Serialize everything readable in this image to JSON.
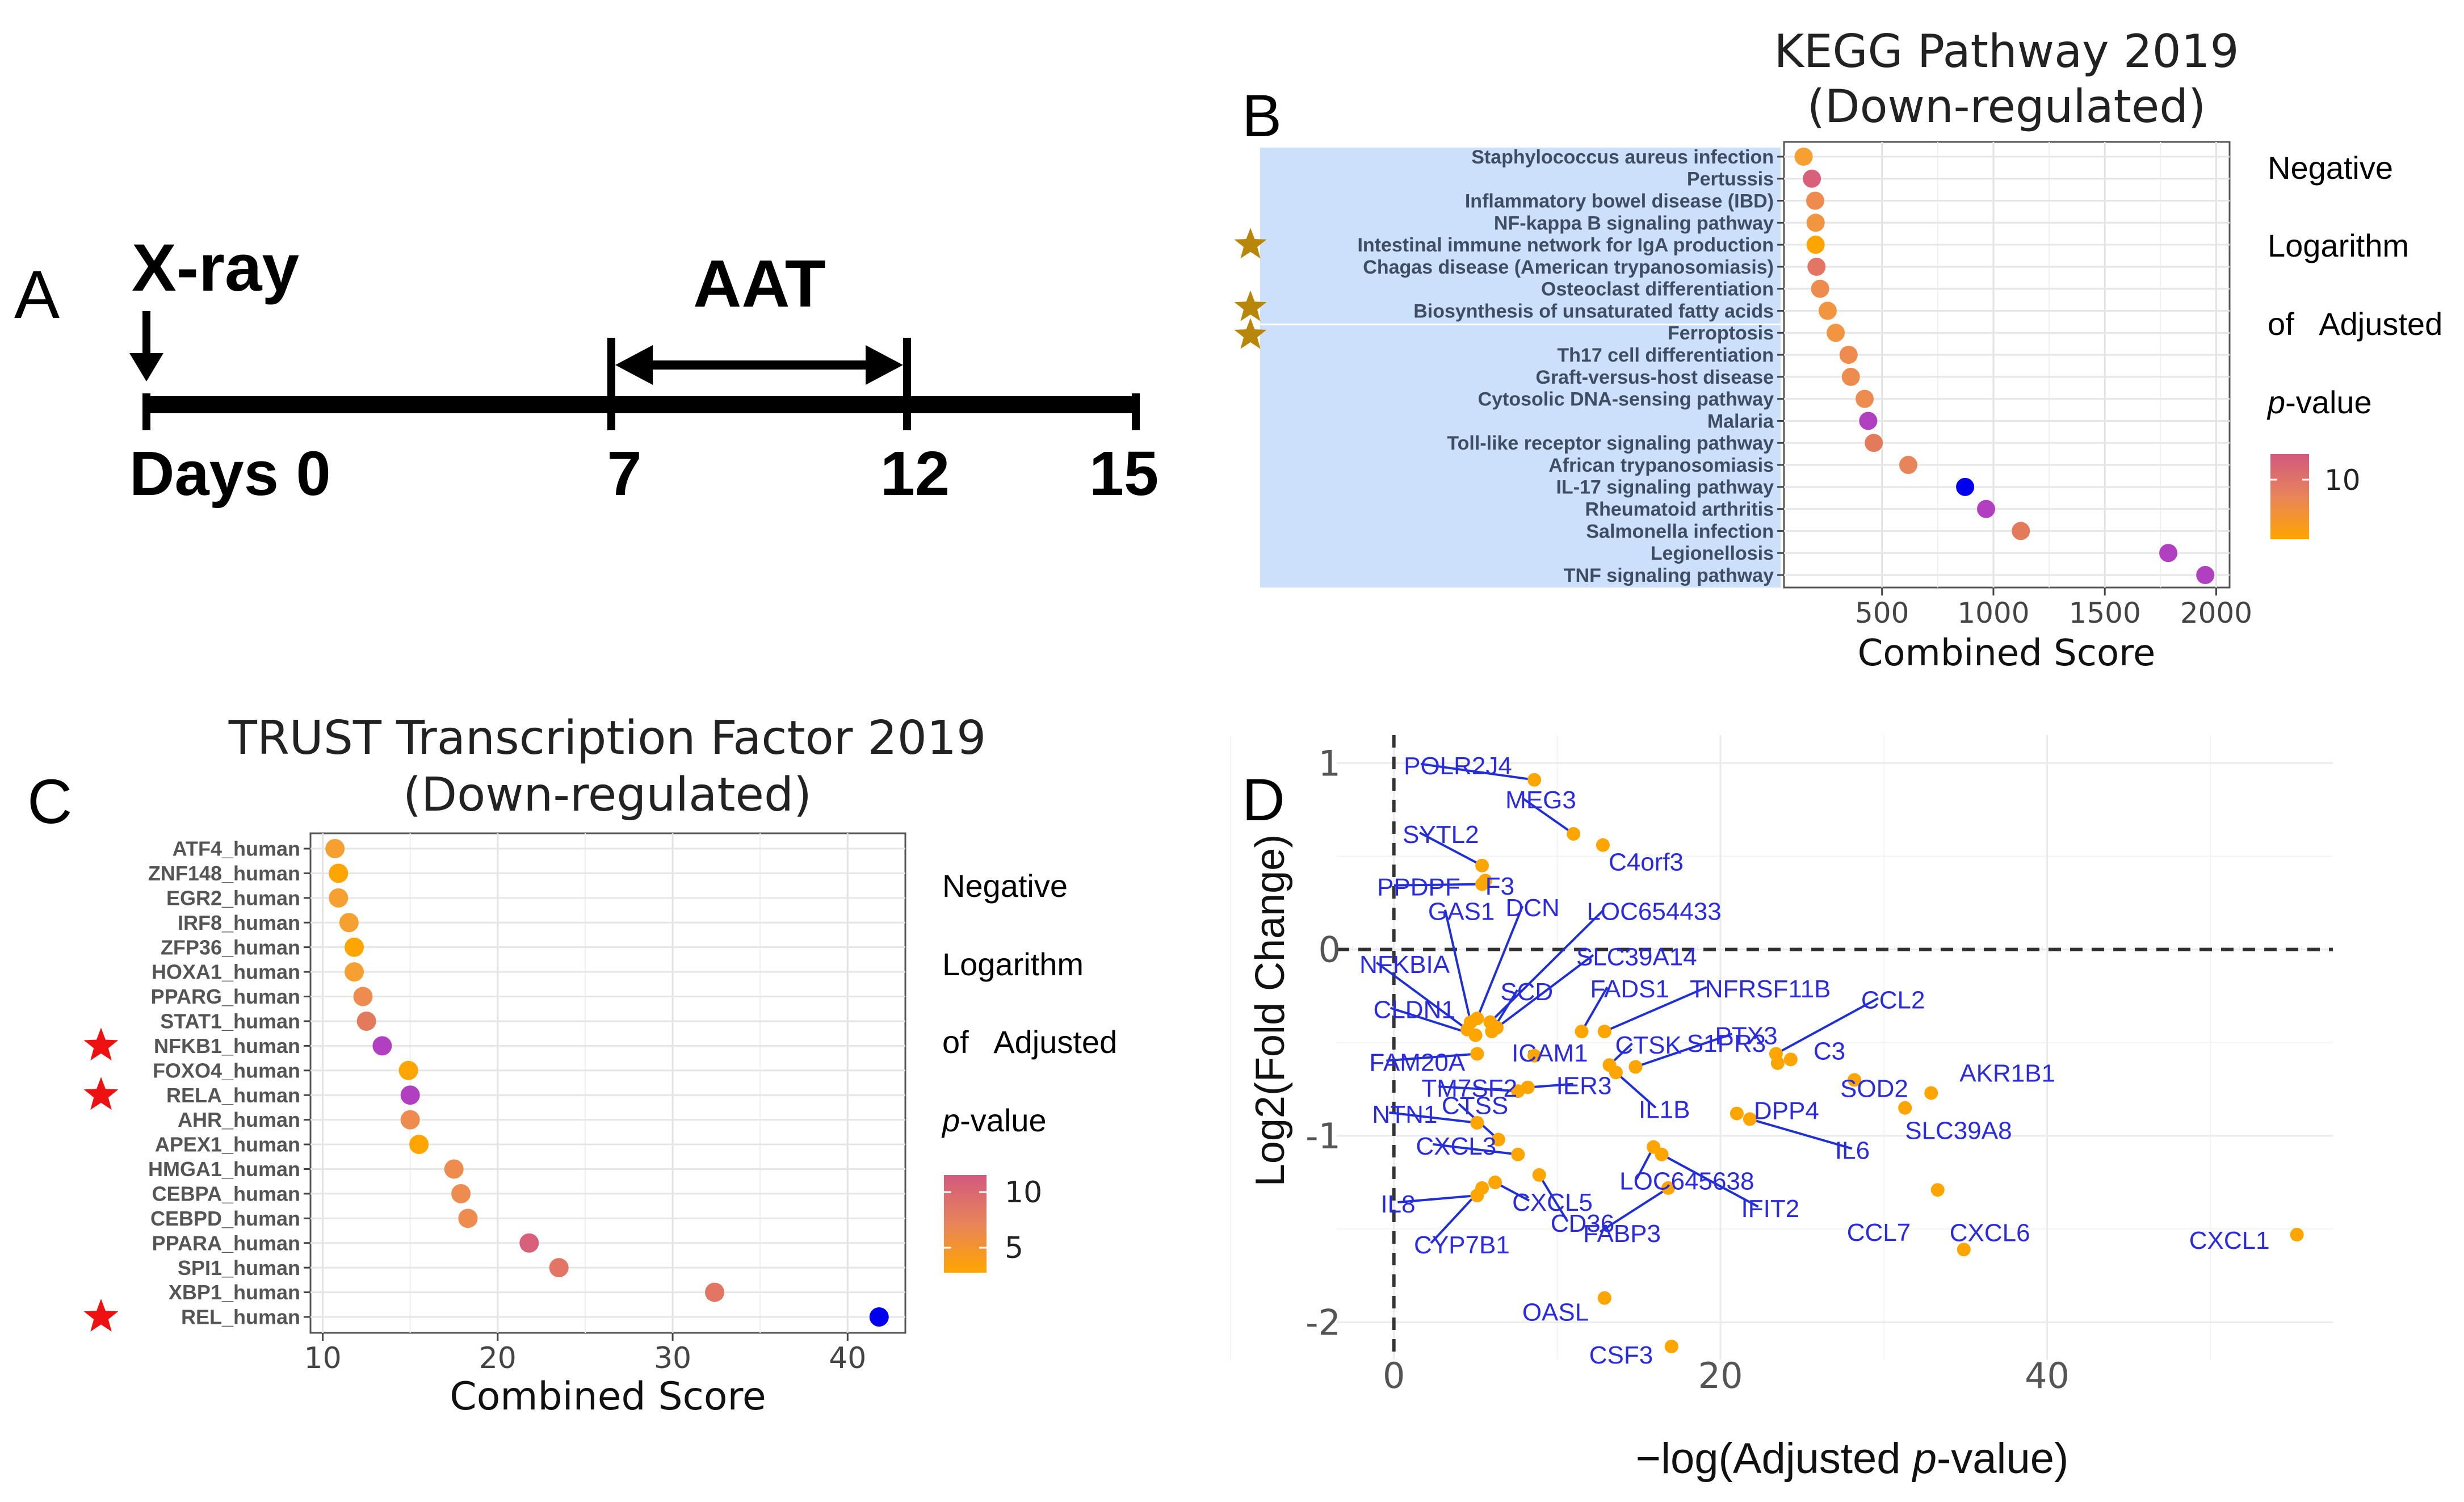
{
  "panel_labels": {
    "a": "A",
    "b": "B",
    "c": "C",
    "d": "D"
  },
  "panel_a": {
    "xray_label": "X-ray",
    "aat_label": "AAT",
    "day_labels": [
      "Days 0",
      "7",
      "12",
      "15"
    ],
    "days": [
      0,
      7,
      12,
      15
    ]
  },
  "colors": {
    "grad_high": "#d2597e",
    "grad_mid": "#e8845a",
    "grad_low": "#ffa500",
    "purple": "#b040c0",
    "blue": "#0000ee",
    "highlight_bg": "#cce0fb",
    "star_gold": "#b8860b",
    "star_red": "#ee1111",
    "gene_label": "#2a2ae0",
    "dot_orange": "#ffa500"
  },
  "legend_b": {
    "lines": [
      "Negative",
      "Logarithm",
      "of   Adjusted"
    ],
    "italic": "p",
    "suffix": "-value",
    "ticks": [
      "10"
    ]
  },
  "legend_c": {
    "lines": [
      "Negative",
      "Logarithm",
      "of   Adjusted"
    ],
    "italic": "p",
    "suffix": "-value",
    "ticks": [
      "10",
      "5"
    ]
  },
  "chart_data": [
    {
      "type": "scatter",
      "panel": "B",
      "title": "KEGG Pathway 2019",
      "subtitle": "(Down-regulated)",
      "xlabel": "Combined Score",
      "ylabel": "",
      "xlim": [
        60,
        2060
      ],
      "xticks": [
        500,
        1000,
        1500,
        2000
      ],
      "xtick_labels": [
        "500",
        "1000",
        "1500",
        "2000"
      ],
      "grid": true,
      "color_legend_title": "Negative Logarithm of Adjusted p-value",
      "starred": [
        "Intestinal immune network for IgA production",
        "Biosynthesis of unsaturated fatty acids",
        "Ferroptosis"
      ],
      "categories": [
        "Staphylococcus aureus infection",
        "Pertussis",
        "Inflammatory bowel disease (IBD)",
        "NF-kappa B signaling pathway",
        "Intestinal immune network for IgA production",
        "Chagas disease (American trypanosomiasis)",
        "Osteoclast differentiation",
        "Biosynthesis of unsaturated fatty acids",
        "Ferroptosis",
        "Th17 cell differentiation",
        "Graft-versus-host disease",
        "Cytosolic DNA-sensing pathway",
        "Malaria",
        "Toll-like receptor signaling pathway",
        "African trypanosomiasis",
        "IL-17 signaling pathway",
        "Rheumatoid arthritis",
        "Salmonella infection",
        "Legionellosis",
        "TNF signaling pathway"
      ],
      "values": [
        148,
        185,
        200,
        202,
        202,
        206,
        222,
        256,
        292,
        350,
        360,
        422,
        438,
        463,
        618,
        873,
        967,
        1123,
        1785,
        1951
      ],
      "colors": [
        "#f5a030",
        "#d8607a",
        "#ee8c50",
        "#f29540",
        "#ffa500",
        "#e37565",
        "#ee8c50",
        "#f29540",
        "#f29540",
        "#ee8c50",
        "#ee8c50",
        "#ee8c50",
        "#b040c0",
        "#e47a5c",
        "#e8845a",
        "#0000ee",
        "#b040c0",
        "#e47a5c",
        "#b040c0",
        "#b040c0"
      ]
    },
    {
      "type": "scatter",
      "panel": "C",
      "title": "TRUST Transcription Factor 2019",
      "subtitle": "(Down-regulated)",
      "xlabel": "Combined Score",
      "ylabel": "",
      "xlim": [
        9.3,
        43.3
      ],
      "xticks": [
        10,
        20,
        30,
        40
      ],
      "xtick_labels": [
        "10",
        "20",
        "30",
        "40"
      ],
      "grid": true,
      "color_legend_title": "Negative Logarithm of Adjusted p-value",
      "starred": [
        "NFKB1_human",
        "RELA_human",
        "REL_human"
      ],
      "categories": [
        "ATF4_human",
        "ZNF148_human",
        "EGR2_human",
        "IRF8_human",
        "ZFP36_human",
        "HOXA1_human",
        "PPARG_human",
        "STAT1_human",
        "NFKB1_human",
        "FOXO4_human",
        "RELA_human",
        "AHR_human",
        "APEX1_human",
        "HMGA1_human",
        "CEBPA_human",
        "CEBPD_human",
        "PPARA_human",
        "SPI1_human",
        "XBP1_human",
        "REL_human"
      ],
      "values": [
        10.7,
        10.9,
        10.9,
        11.5,
        11.8,
        11.8,
        12.3,
        12.5,
        13.4,
        14.9,
        15.0,
        15.0,
        15.5,
        17.5,
        17.9,
        18.3,
        21.8,
        23.5,
        32.4,
        41.8
      ],
      "colors": [
        "#f5a030",
        "#ffa500",
        "#f5a030",
        "#f5a030",
        "#ffa500",
        "#f5a030",
        "#ee8c50",
        "#e47a5c",
        "#b040c0",
        "#ffa500",
        "#b040c0",
        "#ee8c50",
        "#ffa500",
        "#ee8c50",
        "#ee8c50",
        "#ee8c50",
        "#d8607a",
        "#e37565",
        "#e37565",
        "#0000ee"
      ]
    },
    {
      "type": "scatter",
      "panel": "D",
      "title": "",
      "xlabel_prefix": "−log(Adjusted ",
      "xlabel_italic": "p",
      "xlabel_suffix": "-value)",
      "ylabel": "Log2(Fold Change)",
      "xlim": [
        -3.5,
        57.5
      ],
      "ylim": [
        -2.2,
        1.15
      ],
      "xticks": [
        0,
        20,
        40
      ],
      "xtick_labels": [
        "0",
        "20",
        "40"
      ],
      "yticks": [
        1,
        0,
        -1,
        -2
      ],
      "ytick_labels": [
        "1",
        "0",
        "-1",
        "-2"
      ],
      "ref_lines": {
        "x": 0,
        "y": 0
      },
      "grid": true,
      "points": [
        {
          "gene": "POLR2J4",
          "x": 8.6,
          "y": 0.91
        },
        {
          "gene": "MEG3",
          "x": 11.0,
          "y": 0.62
        },
        {
          "gene": "C4orf3",
          "x": 12.8,
          "y": 0.56
        },
        {
          "gene": "SYTL2",
          "x": 5.4,
          "y": 0.45
        },
        {
          "gene": "PPDPF",
          "x": 5.4,
          "y": 0.35
        },
        {
          "gene": "F3",
          "x": 5.6,
          "y": 0.37
        },
        {
          "gene": "GAS1",
          "x": 4.7,
          "y": -0.39
        },
        {
          "gene": "DCN",
          "x": 5.1,
          "y": -0.37
        },
        {
          "gene": "LOC654433",
          "x": 5.9,
          "y": -0.39
        },
        {
          "gene": "SLC39A14",
          "x": 6.3,
          "y": -0.42
        },
        {
          "gene": "NFKBIA",
          "x": 4.5,
          "y": -0.43
        },
        {
          "gene": "CLDN1",
          "x": 5.0,
          "y": -0.46
        },
        {
          "gene": "SCD",
          "x": 6.0,
          "y": -0.44
        },
        {
          "gene": "FADS1",
          "x": 11.5,
          "y": -0.44
        },
        {
          "gene": "TNFRSF11B",
          "x": 12.9,
          "y": -0.44
        },
        {
          "gene": "FAM20A",
          "x": 5.1,
          "y": -0.56
        },
        {
          "gene": "ICAM1",
          "x": 8.6,
          "y": -0.57
        },
        {
          "gene": "CTSK",
          "x": 13.2,
          "y": -0.62
        },
        {
          "gene": "PTX3",
          "x": 14.8,
          "y": -0.63
        },
        {
          "gene": "CCL2",
          "x": 23.4,
          "y": -0.56
        },
        {
          "gene": "C3",
          "x": 24.3,
          "y": -0.59
        },
        {
          "gene": "TM7SF2",
          "x": 7.6,
          "y": -0.76
        },
        {
          "gene": "IER3",
          "x": 8.2,
          "y": -0.74
        },
        {
          "gene": "IL1B",
          "x": 13.6,
          "y": -0.66
        },
        {
          "gene": "S1PR3",
          "x": 23.5,
          "y": -0.61
        },
        {
          "gene": "SOD2",
          "x": 28.2,
          "y": -0.7
        },
        {
          "gene": "AKR1B1",
          "x": 32.9,
          "y": -0.77
        },
        {
          "gene": "NTN1",
          "x": 5.1,
          "y": -0.93
        },
        {
          "gene": "CTSS",
          "x": 6.4,
          "y": -1.02
        },
        {
          "gene": "DPP4",
          "x": 21.0,
          "y": -0.88
        },
        {
          "gene": "IL6",
          "x": 21.8,
          "y": -0.91
        },
        {
          "gene": "SLC39A8",
          "x": 31.3,
          "y": -0.85
        },
        {
          "gene": "LOC645638",
          "x": 15.9,
          "y": -1.06
        },
        {
          "gene": "CXCL3",
          "x": 7.6,
          "y": -1.1
        },
        {
          "gene": "CD36",
          "x": 8.9,
          "y": -1.21
        },
        {
          "gene": "IL8",
          "x": 5.1,
          "y": -1.32
        },
        {
          "gene": "CXCL5",
          "x": 6.2,
          "y": -1.25
        },
        {
          "gene": "FABP3",
          "x": 16.8,
          "y": -1.28
        },
        {
          "gene": "IFIT2",
          "x": 16.4,
          "y": -1.1
        },
        {
          "gene": "CCL7",
          "x": 33.3,
          "y": -1.29
        },
        {
          "gene": "CYP7B1",
          "x": 5.4,
          "y": -1.28
        },
        {
          "gene": "CXCL6",
          "x": 34.9,
          "y": -1.61
        },
        {
          "gene": "CXCL1",
          "x": 55.3,
          "y": -1.53
        },
        {
          "gene": "OASL",
          "x": 12.9,
          "y": -1.87
        },
        {
          "gene": "CSF3",
          "x": 17.0,
          "y": -2.13
        }
      ]
    }
  ]
}
